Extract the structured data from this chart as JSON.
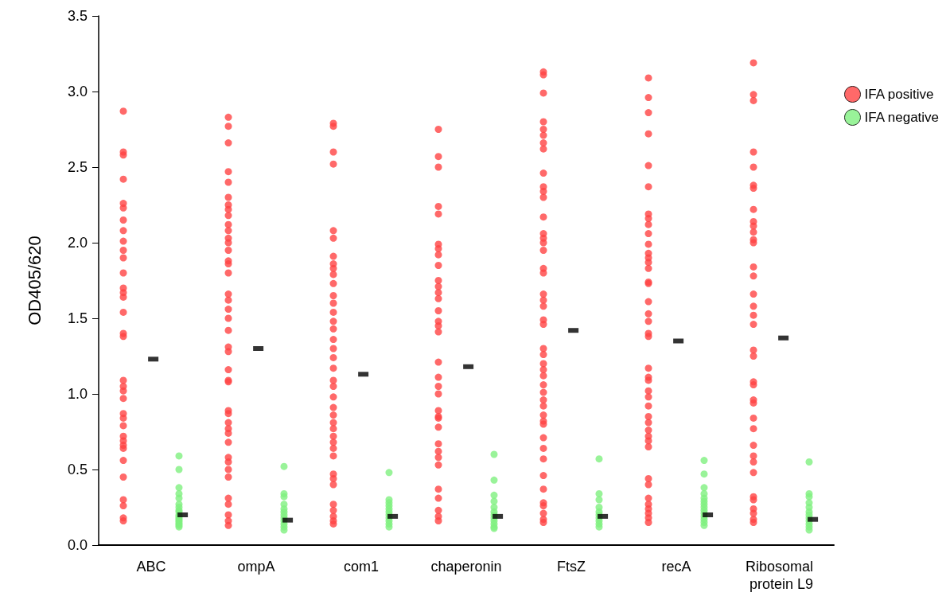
{
  "chart_data": {
    "type": "scatter",
    "ylabel": "OD405/620",
    "categories": [
      "ABC",
      "ompA",
      "com1",
      "chaperonin",
      "FtsZ",
      "recA",
      "Ribosomal protein L9"
    ],
    "ylim": [
      0,
      3.5
    ],
    "yticks": [
      {
        "value": 0,
        "label": "0.0"
      },
      0.5,
      {
        "value": 1,
        "label": "1.0"
      },
      1.5,
      {
        "value": 2,
        "label": "2.0"
      },
      2.5,
      {
        "value": 3,
        "label": "3.0"
      },
      3.5
    ],
    "grid": false,
    "legend": "top right",
    "marker": "circle",
    "series": [
      {
        "name": "IFA positive",
        "color": "#ff4444",
        "x": [
          "ABC",
          "ABC",
          "ABC",
          "ABC",
          "ABC",
          "ABC",
          "ABC",
          "ABC",
          "ABC",
          "ABC",
          "ABC",
          "ABC",
          "ABC",
          "ABC",
          "ABC",
          "ABC",
          "ABC",
          "ABC",
          "ABC",
          "ABC",
          "ABC",
          "ABC",
          "ABC",
          "ABC",
          "ABC",
          "ABC",
          "ABC",
          "ABC",
          "ABC",
          "ABC",
          "ABC",
          "ABC",
          "ABC",
          "ABC",
          "ABC",
          "ompA",
          "ompA",
          "ompA",
          "ompA",
          "ompA",
          "ompA",
          "ompA",
          "ompA",
          "ompA",
          "ompA",
          "ompA",
          "ompA",
          "ompA",
          "ompA",
          "ompA",
          "ompA",
          "ompA",
          "ompA",
          "ompA",
          "ompA",
          "ompA",
          "ompA",
          "ompA",
          "ompA",
          "ompA",
          "ompA",
          "ompA",
          "ompA",
          "ompA",
          "ompA",
          "ompA",
          "ompA",
          "ompA",
          "ompA",
          "ompA",
          "ompA",
          "ompA",
          "ompA",
          "ompA",
          "ompA",
          "ompA",
          "ompA",
          "com1",
          "com1",
          "com1",
          "com1",
          "com1",
          "com1",
          "com1",
          "com1",
          "com1",
          "com1",
          "com1",
          "com1",
          "com1",
          "com1",
          "com1",
          "com1",
          "com1",
          "com1",
          "com1",
          "com1",
          "com1",
          "com1",
          "com1",
          "com1",
          "com1",
          "com1",
          "com1",
          "com1",
          "com1",
          "com1",
          "com1",
          "com1",
          "com1",
          "com1",
          "com1",
          "com1",
          "com1",
          "com1",
          "com1",
          "chaperonin",
          "chaperonin",
          "chaperonin",
          "chaperonin",
          "chaperonin",
          "chaperonin",
          "chaperonin",
          "chaperonin",
          "chaperonin",
          "chaperonin",
          "chaperonin",
          "chaperonin",
          "chaperonin",
          "chaperonin",
          "chaperonin",
          "chaperonin",
          "chaperonin",
          "chaperonin",
          "chaperonin",
          "chaperonin",
          "chaperonin",
          "chaperonin",
          "chaperonin",
          "chaperonin",
          "chaperonin",
          "chaperonin",
          "chaperonin",
          "chaperonin",
          "chaperonin",
          "chaperonin",
          "chaperonin",
          "chaperonin",
          "chaperonin",
          "chaperonin",
          "FtsZ",
          "FtsZ",
          "FtsZ",
          "FtsZ",
          "FtsZ",
          "FtsZ",
          "FtsZ",
          "FtsZ",
          "FtsZ",
          "FtsZ",
          "FtsZ",
          "FtsZ",
          "FtsZ",
          "FtsZ",
          "FtsZ",
          "FtsZ",
          "FtsZ",
          "FtsZ",
          "FtsZ",
          "FtsZ",
          "FtsZ",
          "FtsZ",
          "FtsZ",
          "FtsZ",
          "FtsZ",
          "FtsZ",
          "FtsZ",
          "FtsZ",
          "FtsZ",
          "FtsZ",
          "FtsZ",
          "FtsZ",
          "FtsZ",
          "FtsZ",
          "FtsZ",
          "FtsZ",
          "FtsZ",
          "FtsZ",
          "FtsZ",
          "FtsZ",
          "FtsZ",
          "FtsZ",
          "FtsZ",
          "FtsZ",
          "FtsZ",
          "FtsZ",
          "recA",
          "recA",
          "recA",
          "recA",
          "recA",
          "recA",
          "recA",
          "recA",
          "recA",
          "recA",
          "recA",
          "recA",
          "recA",
          "recA",
          "recA",
          "recA",
          "recA",
          "recA",
          "recA",
          "recA",
          "recA",
          "recA",
          "recA",
          "recA",
          "recA",
          "recA",
          "recA",
          "recA",
          "recA",
          "recA",
          "recA",
          "recA",
          "recA",
          "recA",
          "recA",
          "recA",
          "recA",
          "recA",
          "recA",
          "recA",
          "recA",
          "recA",
          "Ribosomal protein L9",
          "Ribosomal protein L9",
          "Ribosomal protein L9",
          "Ribosomal protein L9",
          "Ribosomal protein L9",
          "Ribosomal protein L9",
          "Ribosomal protein L9",
          "Ribosomal protein L9",
          "Ribosomal protein L9",
          "Ribosomal protein L9",
          "Ribosomal protein L9",
          "Ribosomal protein L9",
          "Ribosomal protein L9",
          "Ribosomal protein L9",
          "Ribosomal protein L9",
          "Ribosomal protein L9",
          "Ribosomal protein L9",
          "Ribosomal protein L9",
          "Ribosomal protein L9",
          "Ribosomal protein L9",
          "Ribosomal protein L9",
          "Ribosomal protein L9",
          "Ribosomal protein L9",
          "Ribosomal protein L9",
          "Ribosomal protein L9",
          "Ribosomal protein L9",
          "Ribosomal protein L9",
          "Ribosomal protein L9",
          "Ribosomal protein L9",
          "Ribosomal protein L9",
          "Ribosomal protein L9",
          "Ribosomal protein L9",
          "Ribosomal protein L9",
          "Ribosomal protein L9",
          "Ribosomal protein L9",
          "Ribosomal protein L9",
          "Ribosomal protein L9"
        ],
        "values": [
          2.87,
          2.6,
          2.58,
          2.42,
          2.26,
          2.23,
          2.15,
          2.08,
          2.01,
          1.95,
          1.9,
          1.8,
          1.7,
          1.67,
          1.64,
          1.54,
          1.4,
          1.38,
          1.09,
          1.05,
          1.02,
          0.97,
          0.87,
          0.84,
          0.79,
          0.72,
          0.69,
          0.66,
          0.64,
          0.56,
          0.45,
          0.3,
          0.26,
          0.18,
          0.16,
          2.83,
          2.77,
          2.66,
          2.47,
          2.4,
          2.3,
          2.25,
          2.22,
          2.18,
          2.12,
          2.08,
          2.03,
          2.0,
          1.95,
          1.88,
          1.86,
          1.8,
          1.66,
          1.62,
          1.56,
          1.5,
          1.42,
          1.31,
          1.28,
          1.16,
          1.09,
          1.08,
          0.89,
          0.87,
          0.81,
          0.77,
          0.74,
          0.68,
          0.58,
          0.55,
          0.5,
          0.45,
          0.31,
          0.27,
          0.2,
          0.16,
          0.13,
          2.79,
          2.77,
          2.6,
          2.52,
          2.08,
          2.03,
          1.91,
          1.86,
          1.83,
          1.79,
          1.73,
          1.65,
          1.6,
          1.54,
          1.48,
          1.43,
          1.36,
          1.3,
          1.24,
          1.17,
          1.09,
          1.05,
          0.98,
          0.91,
          0.86,
          0.81,
          0.77,
          0.72,
          0.68,
          0.64,
          0.59,
          0.47,
          0.44,
          0.4,
          0.27,
          0.23,
          0.19,
          0.16,
          0.14,
          2.75,
          2.57,
          2.5,
          2.24,
          2.19,
          1.99,
          1.96,
          1.92,
          1.85,
          1.75,
          1.71,
          1.67,
          1.63,
          1.55,
          1.48,
          1.45,
          1.41,
          1.21,
          1.11,
          1.05,
          1.0,
          0.89,
          0.85,
          0.84,
          0.78,
          0.67,
          0.62,
          0.58,
          0.53,
          0.37,
          0.31,
          0.23,
          0.19,
          0.16,
          3.13,
          3.11,
          2.99,
          2.8,
          2.75,
          2.71,
          2.66,
          2.62,
          2.46,
          2.37,
          2.34,
          2.3,
          2.17,
          2.06,
          2.03,
          2.0,
          1.95,
          1.83,
          1.8,
          1.66,
          1.62,
          1.58,
          1.49,
          1.46,
          1.3,
          1.26,
          1.2,
          1.16,
          1.12,
          1.06,
          1.01,
          0.96,
          0.92,
          0.86,
          0.82,
          0.8,
          0.71,
          0.64,
          0.57,
          0.46,
          0.37,
          0.28,
          0.26,
          0.21,
          0.17,
          0.15,
          3.09,
          2.96,
          2.86,
          2.72,
          2.51,
          2.37,
          2.19,
          2.16,
          2.12,
          2.06,
          1.99,
          1.93,
          1.9,
          1.87,
          1.83,
          1.74,
          1.73,
          1.61,
          1.53,
          1.48,
          1.4,
          1.38,
          1.17,
          1.11,
          1.09,
          1.02,
          0.98,
          0.92,
          0.85,
          0.81,
          0.76,
          0.72,
          0.69,
          0.65,
          0.44,
          0.4,
          0.31,
          0.27,
          0.24,
          0.21,
          0.18,
          0.15,
          3.19,
          2.98,
          2.94,
          2.6,
          2.5,
          2.38,
          2.36,
          2.22,
          2.14,
          2.11,
          2.07,
          2.02,
          2.0,
          1.84,
          1.78,
          1.66,
          1.58,
          1.52,
          1.46,
          1.29,
          1.25,
          1.08,
          1.06,
          0.96,
          0.94,
          0.84,
          0.77,
          0.66,
          0.59,
          0.55,
          0.48,
          0.32,
          0.3,
          0.24,
          0.21,
          0.17,
          0.15
        ]
      },
      {
        "name": "IFA negative",
        "color": "#80f080",
        "x": [
          "ABC",
          "ABC",
          "ABC",
          "ABC",
          "ABC",
          "ABC",
          "ABC",
          "ABC",
          "ABC",
          "ABC",
          "ABC",
          "ABC",
          "ABC",
          "ABC",
          "ABC",
          "ABC",
          "ABC",
          "ABC",
          "ompA",
          "ompA",
          "ompA",
          "ompA",
          "ompA",
          "ompA",
          "ompA",
          "ompA",
          "ompA",
          "ompA",
          "ompA",
          "ompA",
          "com1",
          "com1",
          "com1",
          "com1",
          "com1",
          "com1",
          "com1",
          "com1",
          "com1",
          "com1",
          "com1",
          "chaperonin",
          "chaperonin",
          "chaperonin",
          "chaperonin",
          "chaperonin",
          "chaperonin",
          "chaperonin",
          "chaperonin",
          "chaperonin",
          "chaperonin",
          "chaperonin",
          "chaperonin",
          "FtsZ",
          "FtsZ",
          "FtsZ",
          "FtsZ",
          "FtsZ",
          "FtsZ",
          "FtsZ",
          "FtsZ",
          "FtsZ",
          "FtsZ",
          "recA",
          "recA",
          "recA",
          "recA",
          "recA",
          "recA",
          "recA",
          "recA",
          "recA",
          "recA",
          "recA",
          "recA",
          "recA",
          "recA",
          "Ribosomal protein L9",
          "Ribosomal protein L9",
          "Ribosomal protein L9",
          "Ribosomal protein L9",
          "Ribosomal protein L9",
          "Ribosomal protein L9",
          "Ribosomal protein L9",
          "Ribosomal protein L9",
          "Ribosomal protein L9",
          "Ribosomal protein L9",
          "Ribosomal protein L9",
          "Ribosomal protein L9"
        ],
        "values": [
          0.59,
          0.5,
          0.38,
          0.34,
          0.31,
          0.27,
          0.25,
          0.23,
          0.22,
          0.2,
          0.19,
          0.18,
          0.17,
          0.16,
          0.15,
          0.14,
          0.13,
          0.12,
          0.52,
          0.34,
          0.32,
          0.27,
          0.24,
          0.22,
          0.2,
          0.18,
          0.16,
          0.14,
          0.12,
          0.1,
          0.48,
          0.3,
          0.28,
          0.26,
          0.24,
          0.22,
          0.2,
          0.18,
          0.16,
          0.14,
          0.12,
          0.6,
          0.43,
          0.33,
          0.29,
          0.25,
          0.22,
          0.2,
          0.18,
          0.16,
          0.14,
          0.12,
          0.11,
          0.57,
          0.34,
          0.3,
          0.25,
          0.22,
          0.2,
          0.18,
          0.16,
          0.14,
          0.12,
          0.56,
          0.47,
          0.38,
          0.34,
          0.31,
          0.29,
          0.27,
          0.25,
          0.23,
          0.21,
          0.19,
          0.17,
          0.15,
          0.13,
          0.55,
          0.34,
          0.32,
          0.28,
          0.25,
          0.22,
          0.2,
          0.18,
          0.16,
          0.14,
          0.12,
          0.1
        ]
      },
      {
        "color": "#000000",
        "marker": "square",
        "values": [
          1.23,
          1.3,
          1.13,
          1.18,
          1.42,
          1.35,
          1.37
        ]
      },
      {
        "color": "#000000",
        "marker": "square",
        "values": [
          0.2,
          0.165,
          0.19,
          0.19,
          0.19,
          0.2,
          0.17
        ]
      }
    ]
  }
}
